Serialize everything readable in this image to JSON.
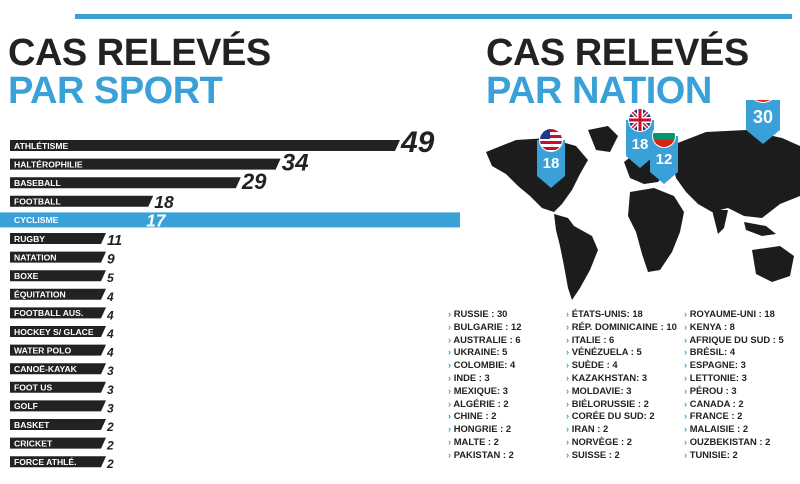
{
  "left_title": {
    "line1": "CAS RELEVÉS",
    "line2": "PAR SPORT"
  },
  "right_title": {
    "line1": "CAS RELEVÉS",
    "line2": "PAR NATION"
  },
  "colors": {
    "accent": "#3aa0d8",
    "bar": "#222222",
    "highlight": "#3aa0d8",
    "map": "#1c1c1c"
  },
  "chart_data": {
    "type": "bar",
    "orientation": "horizontal",
    "categories": [
      "ATHLÉTISME",
      "HALTÉROPHILIE",
      "BASEBALL",
      "FOOTBALL",
      "CYCLISME",
      "RUGBY",
      "NATATION",
      "BOXE",
      "ÉQUITATION",
      "FOOTBALL AUS.",
      "HOCKEY S/ GLACE",
      "WATER POLO",
      "CANOË-KAYAK",
      "FOOT US",
      "GOLF",
      "BASKET",
      "CRICKET",
      "FORCE ATHLÉ."
    ],
    "values": [
      49,
      34,
      29,
      18,
      17,
      11,
      9,
      5,
      4,
      4,
      4,
      4,
      3,
      3,
      3,
      2,
      2,
      2
    ],
    "highlight": "CYCLISME"
  },
  "map_badges": [
    {
      "flag": "usa-flag-icon",
      "value": "18"
    },
    {
      "flag": "uk-flag-icon",
      "value": "18"
    },
    {
      "flag": "bulgaria-flag-icon",
      "value": "12"
    },
    {
      "flag": "russia-flag-icon",
      "value": "30"
    }
  ],
  "nations": {
    "col1": [
      "RUSSIE : 30",
      "BULGARIE : 12",
      "AUSTRALIE : 6",
      "UKRAINE: 5",
      "COLOMBIE: 4",
      "INDE : 3",
      "MEXIQUE: 3",
      "ALGÉRIE : 2",
      "CHINE : 2",
      "HONGRIE : 2",
      "MALTE : 2",
      "PAKISTAN : 2"
    ],
    "col2": [
      "ÉTATS-UNIS: 18",
      "RÉP. DOMINICAINE : 10",
      "ITALIE : 6",
      "VÉNÉZUELA : 5",
      "SUÈDE : 4",
      "KAZAKHSTAN: 3",
      "MOLDAVIE: 3",
      "BIÉLORUSSIE : 2",
      "CORÉE DU SUD: 2",
      "IRAN : 2",
      "NORVÈGE : 2",
      "SUISSE : 2"
    ],
    "col3": [
      "ROYAUME-UNI : 18",
      "KENYA : 8",
      "AFRIQUE DU SUD : 5",
      "BRÉSIL: 4",
      "ESPAGNE: 3",
      "LETTONIE: 3",
      "PÉROU : 3",
      "CANADA : 2",
      "FRANCE : 2",
      "MALAISIE : 2",
      "OUZBEKISTAN : 2",
      "TUNISIE: 2"
    ]
  }
}
